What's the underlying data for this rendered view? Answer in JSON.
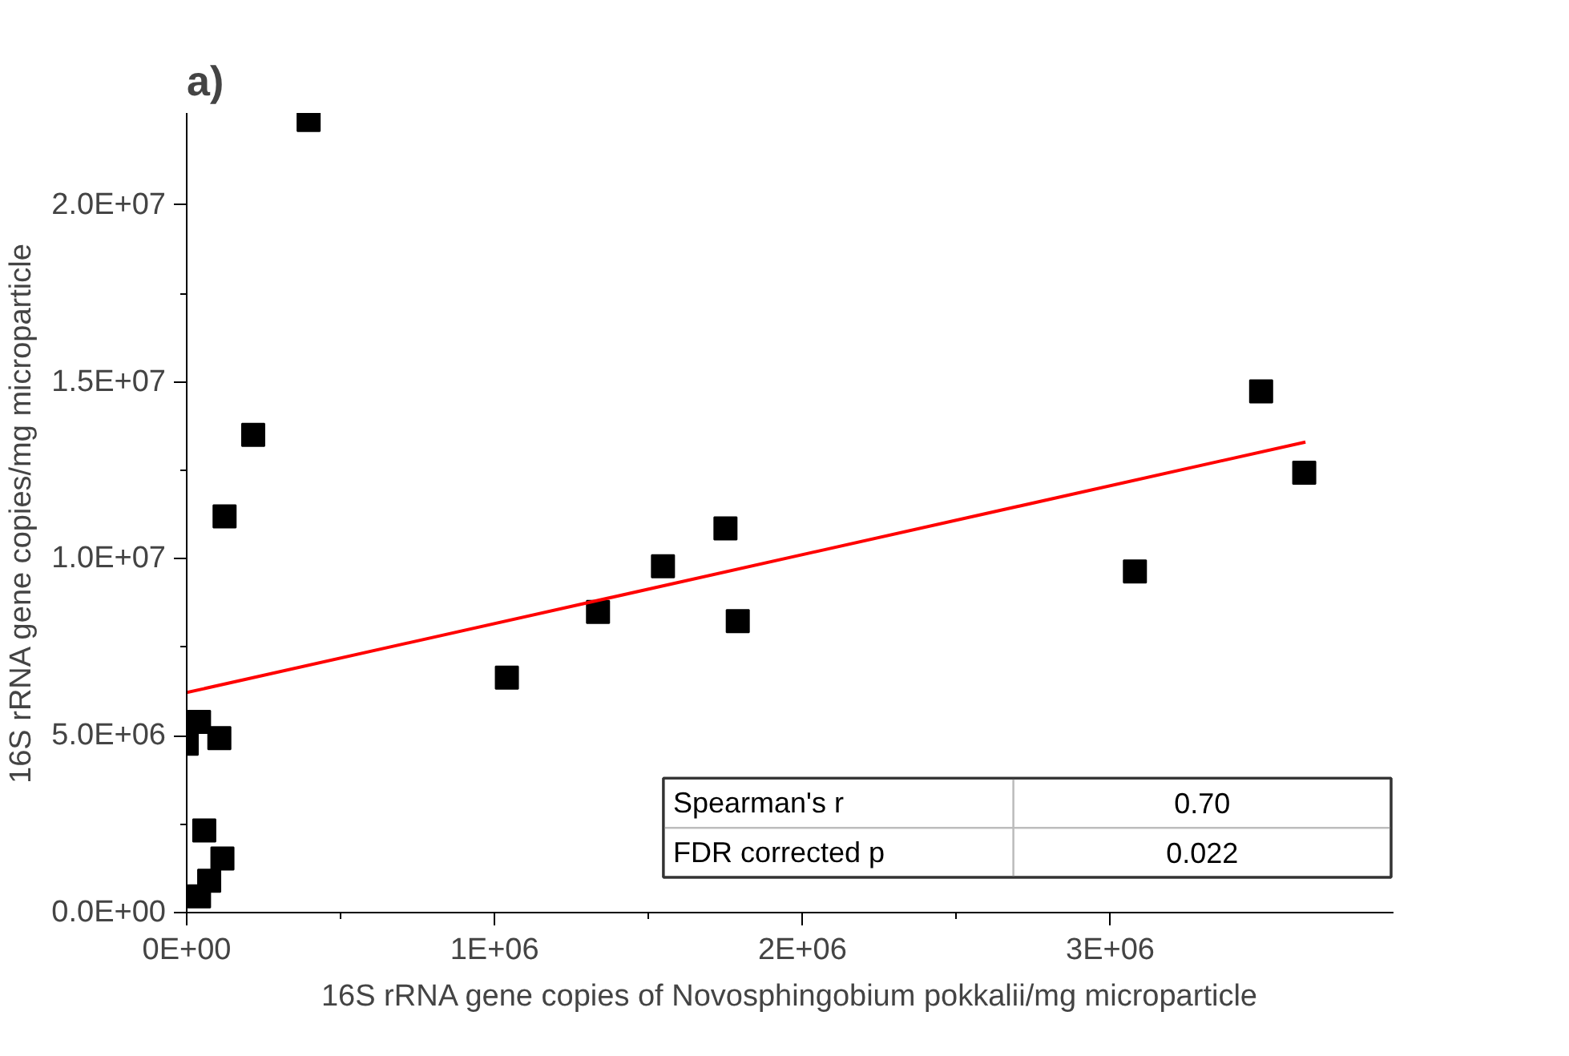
{
  "chart_data": {
    "type": "scatter",
    "title": "a)",
    "xlabel": "16S rRNA gene copies of Novosphingobium pokkalii/mg microparticle",
    "ylabel": "16S rRNA gene copies/mg microparticle",
    "annotations": [
      "Spearman's r",
      "0.70",
      "FDR corrected p",
      "0.022"
    ],
    "xlim": [
      0,
      3920000
    ],
    "ylim": [
      0,
      22600000
    ],
    "xticks": [
      {
        "value": 0,
        "label": "0E+00"
      },
      {
        "value": 1000000,
        "label": "1E+06"
      },
      {
        "value": 2000000,
        "label": "2E+06"
      },
      {
        "value": 3000000,
        "label": "3E+06"
      }
    ],
    "yticks": [
      {
        "value": 0,
        "label": "0.0E+00"
      },
      {
        "value": 5000000,
        "label": "5.0E+06"
      },
      {
        "value": 10000000,
        "label": "1.0E+07"
      },
      {
        "value": 15000000,
        "label": "1.5E+07"
      },
      {
        "value": 20000000,
        "label": "2.0E+07"
      }
    ],
    "grid": false,
    "marker": "square",
    "series": [
      {
        "color": "#000000",
        "x": [
          396000,
          216000,
          123000,
          40000,
          0,
          106000,
          57000,
          116000,
          73000,
          40000,
          1040000,
          1336000,
          1547000,
          1750000,
          1790000,
          3080000,
          3490000,
          3630000
        ],
        "values": [
          22400000,
          13500000,
          11200000,
          5390000,
          4770000,
          4930000,
          2320000,
          1530000,
          900000,
          460000,
          6640000,
          8500000,
          9790000,
          10860000,
          8240000,
          9640000,
          14730000,
          12430000
        ]
      },
      {
        "type": "line",
        "color": "#ff0000",
        "line_style": "solid",
        "marker": "none",
        "x": [
          0,
          3634000
        ],
        "values": [
          6220000,
          13300000
        ]
      }
    ]
  }
}
